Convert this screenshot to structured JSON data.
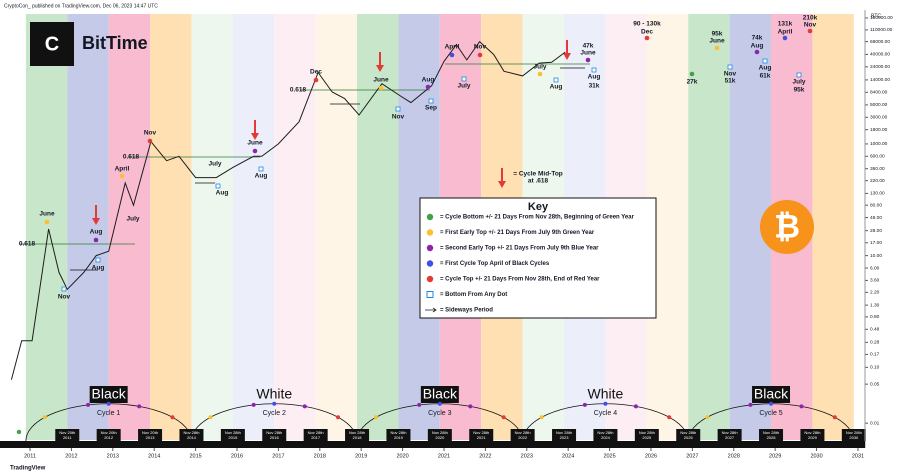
{
  "chart_data": {
    "type": "line",
    "title": "BitTime",
    "header": "CryptoCon_ published on TradingView.com, Dec 06, 2023 14:47 UTC",
    "footer": "TradingView",
    "currency": "BTC",
    "log_scale": true,
    "xlim": [
      2010.275,
      2031.17
    ],
    "ylim": [
      0.005,
      250000
    ],
    "xticks": [
      2011,
      2012,
      2013,
      2014,
      2015,
      2016,
      2017,
      2018,
      2019,
      2020,
      2021,
      2022,
      2023,
      2024,
      2025,
      2026,
      2027,
      2028,
      2029,
      2030,
      2031
    ],
    "yticks": [
      {
        "value": 180000,
        "label": "180000.00"
      },
      {
        "value": 110000,
        "label": "110000.00"
      },
      {
        "value": 68000,
        "label": "68000.00"
      },
      {
        "value": 40000,
        "label": "40000.00"
      },
      {
        "value": 24000,
        "label": "24000.00"
      },
      {
        "value": 14000,
        "label": "14000.00"
      },
      {
        "value": 8400,
        "label": "8400.00"
      },
      {
        "value": 5000,
        "label": "5000.00"
      },
      {
        "value": 3000,
        "label": "3000.00"
      },
      {
        "value": 1800,
        "label": "1800.00"
      },
      {
        "value": 1000,
        "label": "1000.00"
      },
      {
        "value": 600,
        "label": "600.00"
      },
      {
        "value": 360,
        "label": "360.00"
      },
      {
        "value": 220,
        "label": "220.00"
      },
      {
        "value": 130,
        "label": "130.00"
      },
      {
        "value": 80,
        "label": "80.00"
      },
      {
        "value": 48,
        "label": "48.00"
      },
      {
        "value": 28,
        "label": "28.00"
      },
      {
        "value": 17,
        "label": "17.00"
      },
      {
        "value": 10,
        "label": "10.00"
      },
      {
        "value": 6,
        "label": "6.00"
      },
      {
        "value": 3.6,
        "label": "3.60"
      },
      {
        "value": 2.2,
        "label": "2.20"
      },
      {
        "value": 1.3,
        "label": "1.30"
      },
      {
        "value": 0.8,
        "label": "0.80"
      },
      {
        "value": 0.48,
        "label": "0.48"
      },
      {
        "value": 0.28,
        "label": "0.28"
      },
      {
        "value": 0.17,
        "label": "0.17"
      },
      {
        "value": 0.1,
        "label": "0.10"
      },
      {
        "value": 0.05,
        "label": "0.05"
      },
      {
        "value": 0.01,
        "label": "0.01"
      }
    ],
    "series": [
      {
        "name": "BTC",
        "color": "#1e1e1e",
        "x": [
          2010.55,
          2010.8,
          2011.05,
          2011.45,
          2011.7,
          2011.9,
          2012.3,
          2012.6,
          2012.9,
          2013.3,
          2013.5,
          2013.92,
          2014.3,
          2014.6,
          2015.0,
          2015.5,
          2015.9,
          2016.4,
          2016.6,
          2017.0,
          2017.5,
          2017.96,
          2018.3,
          2018.6,
          2018.95,
          2019.5,
          2019.95,
          2020.2,
          2020.7,
          2021.0,
          2021.3,
          2021.55,
          2021.86,
          2022.2,
          2022.45,
          2022.9,
          2023.3,
          2023.6,
          2023.93
        ],
        "values": [
          0.06,
          0.3,
          0.3,
          30,
          5,
          2.5,
          5,
          10,
          12,
          200,
          80,
          1100,
          500,
          600,
          250,
          250,
          380,
          600,
          600,
          1000,
          2500,
          19000,
          8500,
          6500,
          3300,
          12000,
          7200,
          5500,
          11000,
          30000,
          60000,
          32000,
          68000,
          40000,
          20000,
          16500,
          28000,
          29000,
          44000
        ]
      }
    ],
    "bands": [
      "#c8e6c9",
      "#c5cae9",
      "#f8bbd0",
      "#ffe0b2",
      "#eef7ee",
      "#eceef9",
      "#fdeef3",
      "#fff5e6",
      "#c8e6c9",
      "#c5cae9",
      "#f8bbd0",
      "#ffe0b2",
      "#eef7ee",
      "#eceef9",
      "#fdeef3",
      "#fff5e6",
      "#c8e6c9",
      "#c5cae9",
      "#f8bbd0",
      "#ffe0b2"
    ],
    "annotations": [
      "June",
      "Nov",
      "Aug",
      "Aug",
      "0.618",
      "April",
      "July",
      "Nov",
      "0.618",
      "July",
      "Aug",
      "June",
      "Aug",
      "Dec",
      "0.618",
      "June",
      "Nov",
      "Aug",
      "Sep",
      "April",
      "Nov",
      "July",
      "July",
      "Aug",
      "47k",
      "June",
      "Aug",
      "31k",
      "90 - 130k",
      "Dec",
      "95k",
      "June",
      "27k",
      "Nov",
      "51k",
      "74k",
      "Aug",
      "Aug",
      "61k",
      "131k",
      "April",
      "210k",
      "Nov",
      "July",
      "95k",
      "= Cycle Mid-Top",
      "at .618"
    ],
    "key": {
      "title": "Key",
      "items": [
        {
          "label": "= Cycle Bottom +/- 21 Days From Nov 28th, Beginning of Green Year",
          "color": "#43a047"
        },
        {
          "label": "= First Early Top +/- 21 Days From July 9th Green Year",
          "color": "#fbc02d"
        },
        {
          "label": "= Second Early Top +/- 21 Days From July 9th Blue Year",
          "color": "#8e24aa"
        },
        {
          "label": "= First Cycle Top April of Black Cycles",
          "color": "#3f51e5"
        },
        {
          "label": "= Cycle Top +/- 21 Days From Nov 28th, End of Red Year",
          "color": "#e53935"
        },
        {
          "label": "= Bottom From Any Dot",
          "color": "#1e88e5"
        },
        {
          "label": "= Sideways Period",
          "color": "#1e1e1e"
        }
      ]
    },
    "cycles": [
      {
        "kind": "Black",
        "name": "Cycle 1"
      },
      {
        "kind": "White",
        "name": "Cycle 2"
      },
      {
        "kind": "Black",
        "name": "Cycle 3"
      },
      {
        "kind": "White",
        "name": "Cycle 4"
      },
      {
        "kind": "Black",
        "name": "Cycle 5"
      }
    ],
    "cycle_dates": [
      [
        "Nov 20th",
        "2011"
      ],
      [
        "Nov 20th",
        "2012"
      ],
      [
        "Nov 20th",
        "2013"
      ],
      [
        "Nov 28th",
        "2014"
      ],
      [
        "Nov 28th",
        "2015"
      ],
      [
        "Nov 28th",
        "2016"
      ],
      [
        "Nov 28th",
        "2017"
      ],
      [
        "Nov 28th",
        "2018"
      ],
      [
        "Nov 28th",
        "2019"
      ],
      [
        "Nov 28th",
        "2020"
      ],
      [
        "Nov 28th",
        "2021"
      ],
      [
        "Nov 28th",
        "2022"
      ],
      [
        "Nov 28th",
        "2023"
      ],
      [
        "Nov 28th",
        "2024"
      ],
      [
        "Nov 28th",
        "2025"
      ],
      [
        "Nov 28th",
        "2026"
      ],
      [
        "Nov 28th",
        "2027"
      ],
      [
        "Nov 28th",
        "2028"
      ],
      [
        "Nov 28th",
        "2029"
      ],
      [
        "Nov 28th",
        "2030"
      ]
    ]
  }
}
